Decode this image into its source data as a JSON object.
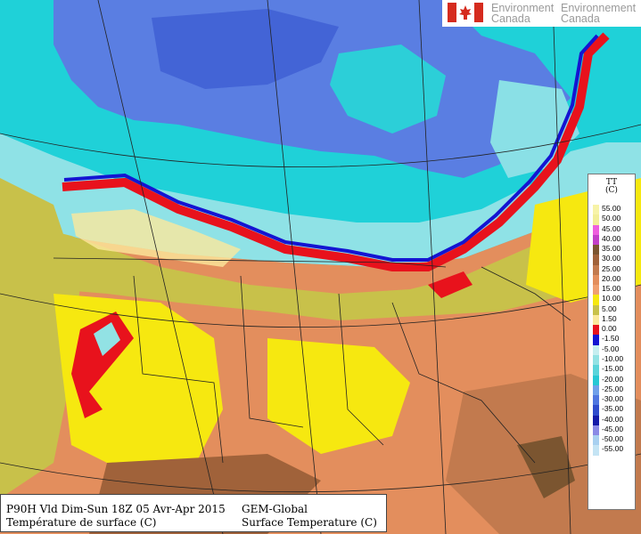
{
  "branding": {
    "flag_icon": "canada-flag-icon",
    "org_en_line1": "Environment",
    "org_en_line2": "Canada",
    "org_fr_line1": "Environnement",
    "org_fr_line2": "Canada",
    "colors": {
      "flag_red": "#d52b1e",
      "text_gray": "#9a9a9a"
    }
  },
  "legend": {
    "variable": "TT",
    "unit": "(C)",
    "classes": [
      {
        "label": "55.00",
        "color": "#f7f3a8"
      },
      {
        "label": "50.00",
        "color": "#f2ee98"
      },
      {
        "label": "45.00",
        "color": "#ee5ede"
      },
      {
        "label": "40.00",
        "color": "#c23fc8"
      },
      {
        "label": "35.00",
        "color": "#7b5530"
      },
      {
        "label": "30.00",
        "color": "#a0623a"
      },
      {
        "label": "25.00",
        "color": "#c27a4e"
      },
      {
        "label": "20.00",
        "color": "#e38e5d"
      },
      {
        "label": "15.00",
        "color": "#f0a070"
      },
      {
        "label": "10.00",
        "color": "#f6e810"
      },
      {
        "label": "5.00",
        "color": "#c8c14a"
      },
      {
        "label": "1.50",
        "color": "#fbe99c"
      },
      {
        "label": "0.00",
        "color": "#e8121c"
      },
      {
        "label": "-1.50",
        "color": "#1414d2"
      },
      {
        "label": "-5.00",
        "color": "#c6eef0"
      },
      {
        "label": "-10.00",
        "color": "#92e2e4"
      },
      {
        "label": "-15.00",
        "color": "#5ad4da"
      },
      {
        "label": "-20.00",
        "color": "#26c8d4"
      },
      {
        "label": "-25.00",
        "color": "#6fa0ea"
      },
      {
        "label": "-30.00",
        "color": "#4f76e0"
      },
      {
        "label": "-35.00",
        "color": "#2f4ccc"
      },
      {
        "label": "-40.00",
        "color": "#141aa8"
      },
      {
        "label": "-45.00",
        "color": "#8a8ae6"
      },
      {
        "label": "-50.00",
        "color": "#a8d0f0"
      },
      {
        "label": "-55.00",
        "color": "#c4e4f4"
      }
    ]
  },
  "caption": {
    "run_line": "P90H Vld Dim-Sun 18Z 05 Avr-Apr 2015",
    "title_fr": "Température de surface (C)",
    "model": "GEM-Global",
    "title_en": "Surface Temperature (C)"
  }
}
